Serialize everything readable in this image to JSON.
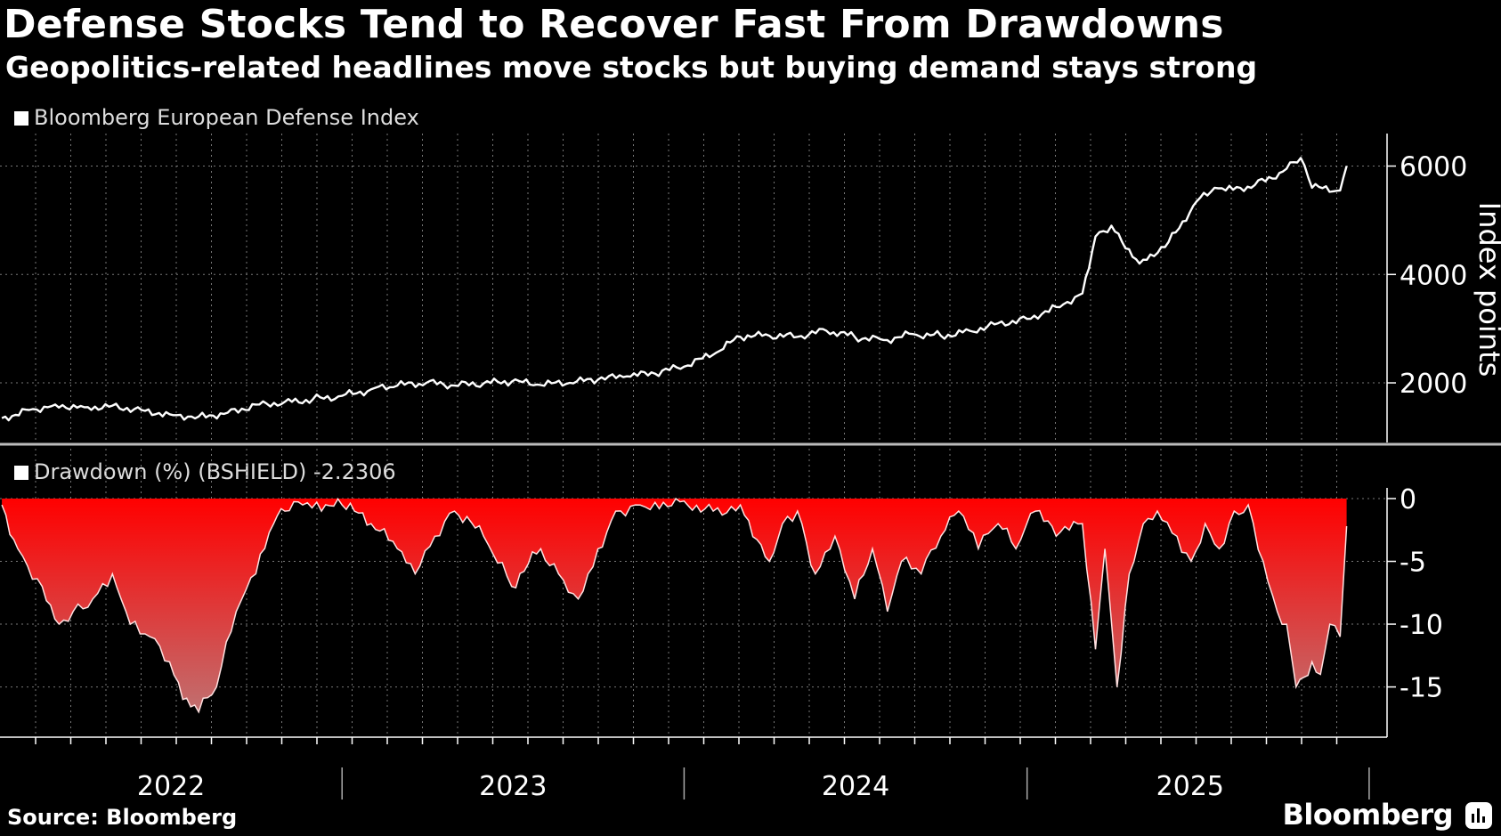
{
  "title": "Defense Stocks Tend to Recover Fast From Drawdowns",
  "subtitle": "Geopolitics-related headlines move stocks but buying demand stays strong",
  "source": "Source: Bloomberg",
  "brand": "Bloomberg",
  "colors": {
    "background": "#000000",
    "line": "#ffffff",
    "drawdown_top": "#ff0000",
    "drawdown_bottom": "#c07070",
    "grid": "#777777"
  },
  "chart_data": [
    {
      "type": "line",
      "legend": "Bloomberg European Defense Index",
      "ylabel": "Index points",
      "y_ticks": [
        "2000",
        "4000",
        "6000"
      ],
      "ylim": [
        900,
        6600
      ],
      "x_ticks": [
        "2022",
        "2023",
        "2024",
        "2025"
      ],
      "grid": true,
      "series": [
        {
          "name": "Bloomberg European Defense Index",
          "x": [
            "2022-01-03",
            "2022-02-01",
            "2022-03-01",
            "2022-04-01",
            "2022-05-01",
            "2022-06-01",
            "2022-07-01",
            "2022-08-01",
            "2022-09-01",
            "2022-10-01",
            "2022-11-01",
            "2022-12-01",
            "2023-01-01",
            "2023-02-01",
            "2023-03-01",
            "2023-04-01",
            "2023-05-01",
            "2023-06-01",
            "2023-07-01",
            "2023-08-01",
            "2023-09-01",
            "2023-10-01",
            "2023-11-01",
            "2023-12-01",
            "2024-01-01",
            "2024-02-01",
            "2024-03-01",
            "2024-04-01",
            "2024-05-01",
            "2024-06-01",
            "2024-07-01",
            "2024-08-01",
            "2024-09-01",
            "2024-10-01",
            "2024-11-01",
            "2024-12-01",
            "2025-01-01",
            "2025-02-01",
            "2025-03-01",
            "2025-03-15",
            "2025-04-01",
            "2025-05-01",
            "2025-06-01",
            "2025-07-01",
            "2025-07-20",
            "2025-08-01",
            "2025-09-01",
            "2025-10-01",
            "2025-10-20",
            "2025-11-01",
            "2025-12-01",
            "2025-12-08"
          ],
          "values": [
            1350,
            1500,
            1600,
            1550,
            1580,
            1500,
            1420,
            1380,
            1450,
            1600,
            1650,
            1700,
            1760,
            1880,
            1950,
            2000,
            1950,
            1990,
            2020,
            1960,
            2000,
            2060,
            2120,
            2170,
            2300,
            2520,
            2850,
            2870,
            2850,
            2960,
            2850,
            2790,
            2900,
            2870,
            2960,
            3100,
            3180,
            3400,
            3650,
            4700,
            4900,
            4200,
            4600,
            5350,
            5600,
            5550,
            5650,
            5900,
            6150,
            5600,
            5550,
            6000
          ]
        }
      ]
    },
    {
      "type": "area",
      "legend": "Drawdown (%) (BSHIELD) -2.2306",
      "y_ticks": [
        "0",
        "-5",
        "-10",
        "-15"
      ],
      "ylim": [
        -19,
        0
      ],
      "x_ticks": [
        "2022",
        "2023",
        "2024",
        "2025"
      ],
      "grid": true,
      "series": [
        {
          "name": "Drawdown (%) (BSHIELD)",
          "x": [
            "2022-01-03",
            "2022-01-20",
            "2022-02-15",
            "2022-03-05",
            "2022-03-20",
            "2022-04-10",
            "2022-05-01",
            "2022-05-20",
            "2022-06-10",
            "2022-07-01",
            "2022-07-15",
            "2022-08-01",
            "2022-08-20",
            "2022-09-10",
            "2022-10-01",
            "2022-10-20",
            "2022-11-01",
            "2022-11-20",
            "2022-12-10",
            "2023-01-01",
            "2023-02-01",
            "2023-03-01",
            "2023-03-20",
            "2023-04-10",
            "2023-05-01",
            "2023-06-01",
            "2023-07-01",
            "2023-08-01",
            "2023-08-20",
            "2023-09-10",
            "2023-10-01",
            "2023-10-20",
            "2023-11-10",
            "2023-12-01",
            "2024-01-01",
            "2024-02-01",
            "2024-03-01",
            "2024-04-01",
            "2024-04-15",
            "2024-05-01",
            "2024-05-20",
            "2024-06-10",
            "2024-07-01",
            "2024-07-20",
            "2024-08-05",
            "2024-08-20",
            "2024-09-10",
            "2024-10-01",
            "2024-10-20",
            "2024-11-10",
            "2024-12-01",
            "2024-12-20",
            "2025-01-10",
            "2025-02-01",
            "2025-03-01",
            "2025-03-15",
            "2025-03-25",
            "2025-04-07",
            "2025-04-20",
            "2025-05-05",
            "2025-05-20",
            "2025-06-10",
            "2025-06-25",
            "2025-07-10",
            "2025-07-25",
            "2025-08-10",
            "2025-08-25",
            "2025-09-10",
            "2025-09-25",
            "2025-10-05",
            "2025-10-15",
            "2025-11-01",
            "2025-11-10",
            "2025-11-20",
            "2025-12-01",
            "2025-12-08"
          ],
          "values": [
            -0.5,
            -4,
            -7,
            -10,
            -9,
            -8,
            -6,
            -10,
            -11,
            -13,
            -16,
            -17,
            -15,
            -9,
            -6,
            -2,
            -1,
            -0.5,
            -1,
            -0.5,
            -2,
            -4,
            -6,
            -3,
            -1,
            -3,
            -7,
            -4,
            -6,
            -8,
            -4,
            -1,
            -0.5,
            -0.3,
            -0.2,
            -1,
            -0.5,
            -5,
            -2,
            -1,
            -6,
            -3,
            -8,
            -4,
            -9,
            -5,
            -6,
            -3,
            -1,
            -4,
            -2,
            -4,
            -1,
            -3,
            -2,
            -12,
            -4,
            -15,
            -6,
            -2,
            -1,
            -3,
            -5,
            -2,
            -4,
            -1,
            -0.5,
            -5,
            -9,
            -10,
            -15,
            -13,
            -14,
            -10,
            -11,
            -2.2
          ]
        }
      ]
    }
  ]
}
